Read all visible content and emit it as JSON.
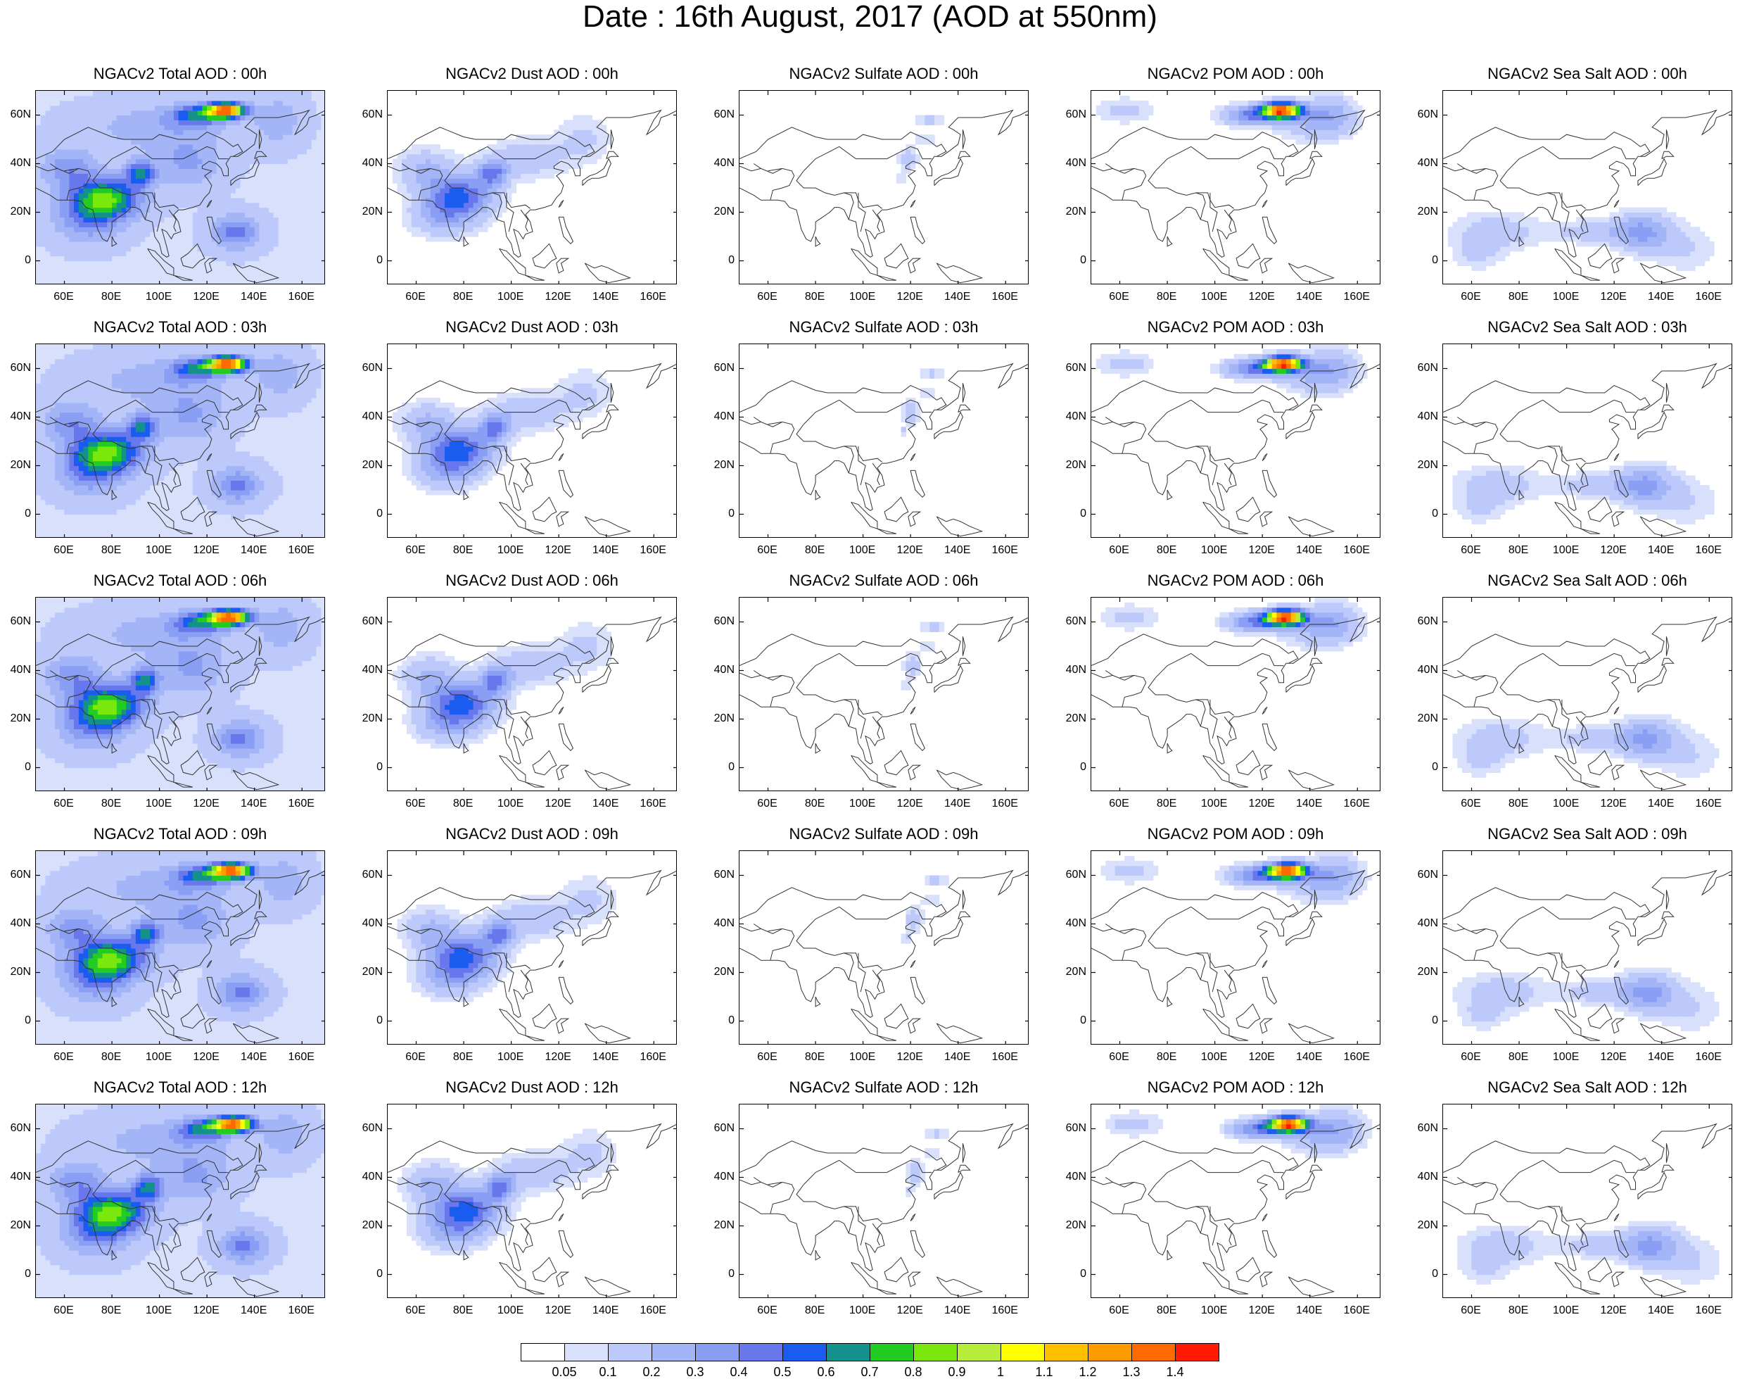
{
  "title": "Date : 16th August, 2017 (AOD at 550nm)",
  "panels": [
    [
      "NGACv2 Total AOD : 00h",
      "NGACv2 Dust AOD : 00h",
      "NGACv2 Sulfate AOD : 00h",
      "NGACv2 POM AOD : 00h",
      "NGACv2 Sea Salt AOD : 00h"
    ],
    [
      "NGACv2 Total AOD : 03h",
      "NGACv2 Dust AOD : 03h",
      "NGACv2 Sulfate AOD : 03h",
      "NGACv2 POM AOD : 03h",
      "NGACv2 Sea Salt AOD : 03h"
    ],
    [
      "NGACv2 Total AOD : 06h",
      "NGACv2 Dust AOD : 06h",
      "NGACv2 Sulfate AOD : 06h",
      "NGACv2 POM AOD : 06h",
      "NGACv2 Sea Salt AOD : 06h"
    ],
    [
      "NGACv2 Total AOD : 09h",
      "NGACv2 Dust AOD : 09h",
      "NGACv2 Sulfate AOD : 09h",
      "NGACv2 POM AOD : 09h",
      "NGACv2 Sea Salt  AOD : 09h"
    ],
    [
      "NGACv2 Total AOD  : 12h",
      "NGACv2 Dust AOD : 12h",
      "NGACv2 Sulfate AOD : 12h",
      "NGACv2 POM  AOD : 12h",
      "NGACv2 Sea Salt  AOD : 12h"
    ]
  ],
  "lat_labels": [
    "60N",
    "40N",
    "20N",
    "0"
  ],
  "lon_labels": [
    "60E",
    "80E",
    "100E",
    "120E",
    "140E",
    "160E"
  ],
  "colorbar": {
    "labels": [
      "0.05",
      "0.1",
      "0.2",
      "0.3",
      "0.4",
      "0.5",
      "0.6",
      "0.7",
      "0.8",
      "0.9",
      "1",
      "1.1",
      "1.2",
      "1.3",
      "1.4"
    ],
    "colors": [
      "#ffffff",
      "#d8e0fc",
      "#bcc9fa",
      "#a3b5f7",
      "#8a9ff3",
      "#6878ec",
      "#1a5cf0",
      "#14918c",
      "#22cc22",
      "#7ae80c",
      "#b8ec3a",
      "#ffff00",
      "#ffc000",
      "#ff9a00",
      "#ff6a00",
      "#ff1a00"
    ]
  }
}
